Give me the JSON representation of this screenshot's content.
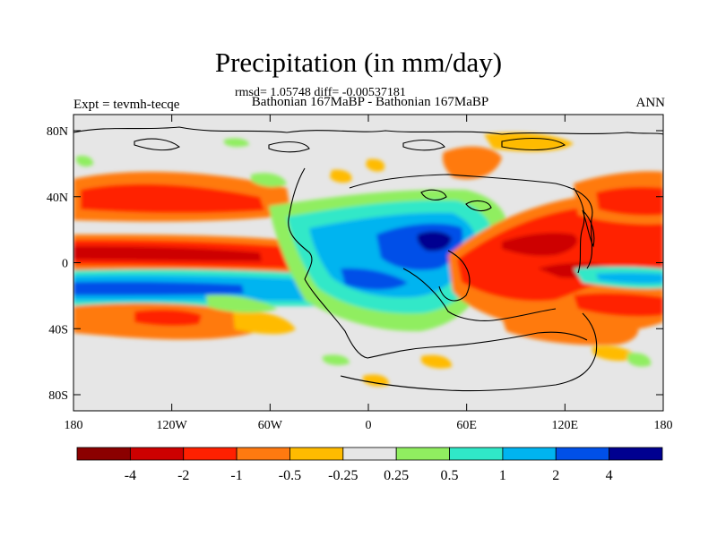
{
  "header": {
    "title": "Precipitation (in mm/day)",
    "stats": "rmsd= 1.05748 diff= -0.00537181",
    "subtitle": "Bathonian 167MaBP - Bathonian 167MaBP",
    "expt": "Expt = tevmh-tecqe",
    "season": "ANN"
  },
  "map": {
    "x_ticks": [
      "180",
      "120W",
      "60W",
      "0",
      "60E",
      "120E",
      "180"
    ],
    "y_ticks": [
      "80N",
      "40N",
      "0",
      "40S",
      "80S"
    ]
  },
  "colorbar": {
    "colors": [
      "#8b0000",
      "#cd0000",
      "#ff2000",
      "#ff7a10",
      "#ffbb00",
      "#e6e6e6",
      "#90ee60",
      "#30e8c8",
      "#00b4f0",
      "#0050e8",
      "#000090"
    ],
    "labels": [
      "-4",
      "-2",
      "-1",
      "-0.5",
      "-0.25",
      "0.25",
      "0.5",
      "1",
      "2",
      "4"
    ]
  },
  "palette": {
    "background": "#e6e6e6",
    "coast": "#000000"
  }
}
